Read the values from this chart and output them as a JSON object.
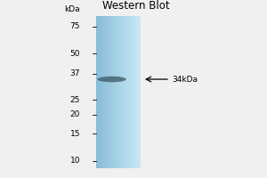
{
  "title": "Western Blot",
  "kda_labels": [
    75,
    50,
    37,
    25,
    20,
    15,
    10
  ],
  "kda_label": "kDa",
  "band_kda": 34,
  "band_annotation": "←34kDa",
  "gel_color": "#a8d3e8",
  "gel_color_left": "#88bdd8",
  "gel_color_right": "#c8e8f5",
  "band_color": "#4a6878",
  "background_color": "#f0f0f0",
  "ymin": 9,
  "ymax": 88,
  "label_fontsize": 6.5,
  "title_fontsize": 8.5
}
